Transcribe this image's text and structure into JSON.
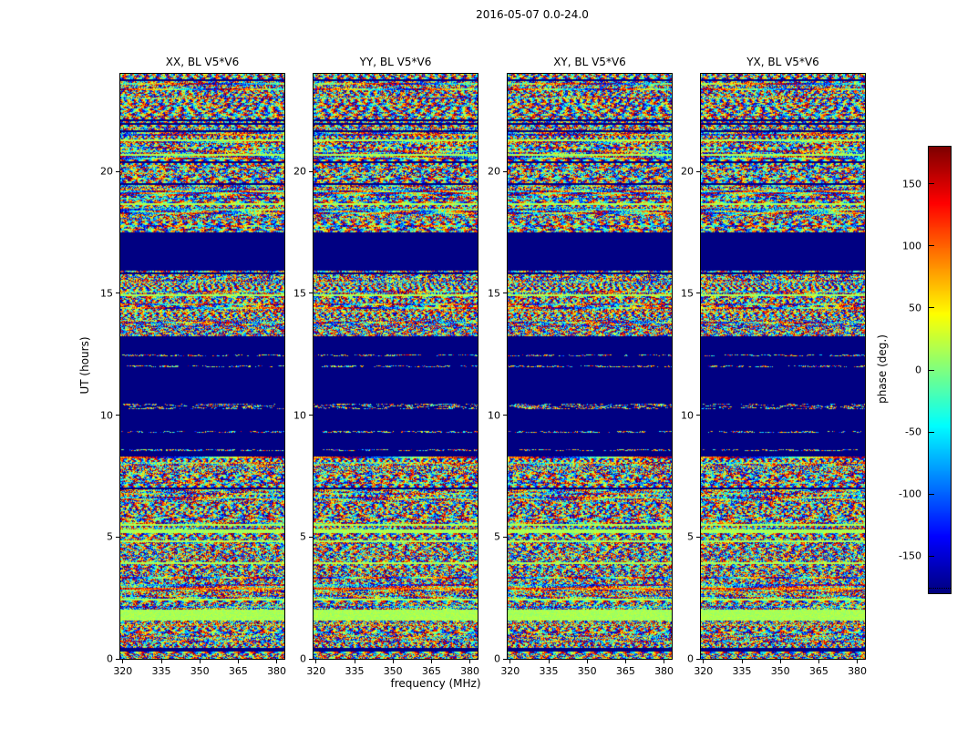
{
  "figure_title": "2016-05-07 0.0-24.0",
  "axes": {
    "xlabel": "frequency (MHz)",
    "ylabel": "UT (hours)",
    "x_ticks": [
      320,
      335,
      350,
      365,
      380
    ],
    "y_ticks": [
      0,
      5,
      10,
      15,
      20
    ],
    "x_range_mhz": [
      319,
      383
    ],
    "y_range_hours": [
      0,
      24
    ]
  },
  "panels": [
    {
      "title": "XX, BL V5*V6"
    },
    {
      "title": "YY, BL V5*V6"
    },
    {
      "title": "XY, BL V5*V6"
    },
    {
      "title": "YX, BL V5*V6"
    }
  ],
  "colorbar": {
    "label": "phase (deg.)",
    "ticks": [
      150,
      100,
      50,
      0,
      -50,
      -100,
      -150
    ],
    "min": -180,
    "max": 180,
    "colormap": "jet",
    "top_color": "#8b0000",
    "bottom_color": "#00008b"
  },
  "chart_data": {
    "type": "heatmap",
    "title": "2016-05-07 0.0-24.0",
    "xlabel": "frequency (MHz)",
    "ylabel": "UT (hours)",
    "zlabel": "phase (deg.)",
    "x_range_mhz": [
      319,
      383
    ],
    "y_range_hours": [
      0,
      24
    ],
    "z_range_deg": [
      -180,
      180
    ],
    "colormap": "jet",
    "panels": [
      "XX, BL V5*V6",
      "YY, BL V5*V6",
      "XY, BL V5*V6",
      "YX, BL V5*V6"
    ],
    "texture": "interferometric visibility phase vs time and frequency: fine random rainbow speckle with horizontal row striping, vertical/diagonal fringe patterns, and flagged solid dark-blue rows; all four polarization panels show nearly identical band structure",
    "features": [
      {
        "y_from": 0.0,
        "y_to": 1.57,
        "type": "noise",
        "description": "random phase fringes, strong diagonal swirls near 0.5-1.2 h"
      },
      {
        "y_from": 1.57,
        "y_to": 2.02,
        "type": "green_band",
        "description": "uniform light-green band, phase near +15 deg"
      },
      {
        "y_from": 2.02,
        "y_to": 5.18,
        "type": "noise",
        "description": "noisy rows with occasional flagged dark-blue lines; strong fringes near 4-5 h"
      },
      {
        "y_from": 5.18,
        "y_to": 5.32,
        "type": "green_band",
        "description": "thin light-green row"
      },
      {
        "y_from": 5.32,
        "y_to": 8.3,
        "type": "noise",
        "description": "noisy rows with horizontal striping"
      },
      {
        "y_from": 8.3,
        "y_to": 13.27,
        "type": "quiet_speckle",
        "description": "mostly uniform dark blue (-180 deg) with sparse dashed speckle rows roughly every 0.5 h"
      },
      {
        "y_from": 13.27,
        "y_to": 15.9,
        "type": "noise",
        "description": "noisy banded rows"
      },
      {
        "y_from": 15.9,
        "y_to": 17.53,
        "type": "solid_blue",
        "description": "uniform dark-blue band (-180 deg)"
      },
      {
        "y_from": 17.53,
        "y_to": 24.0,
        "type": "noise",
        "description": "noisy rows, strong diagonal fringe patches near 18-19 h"
      }
    ]
  }
}
